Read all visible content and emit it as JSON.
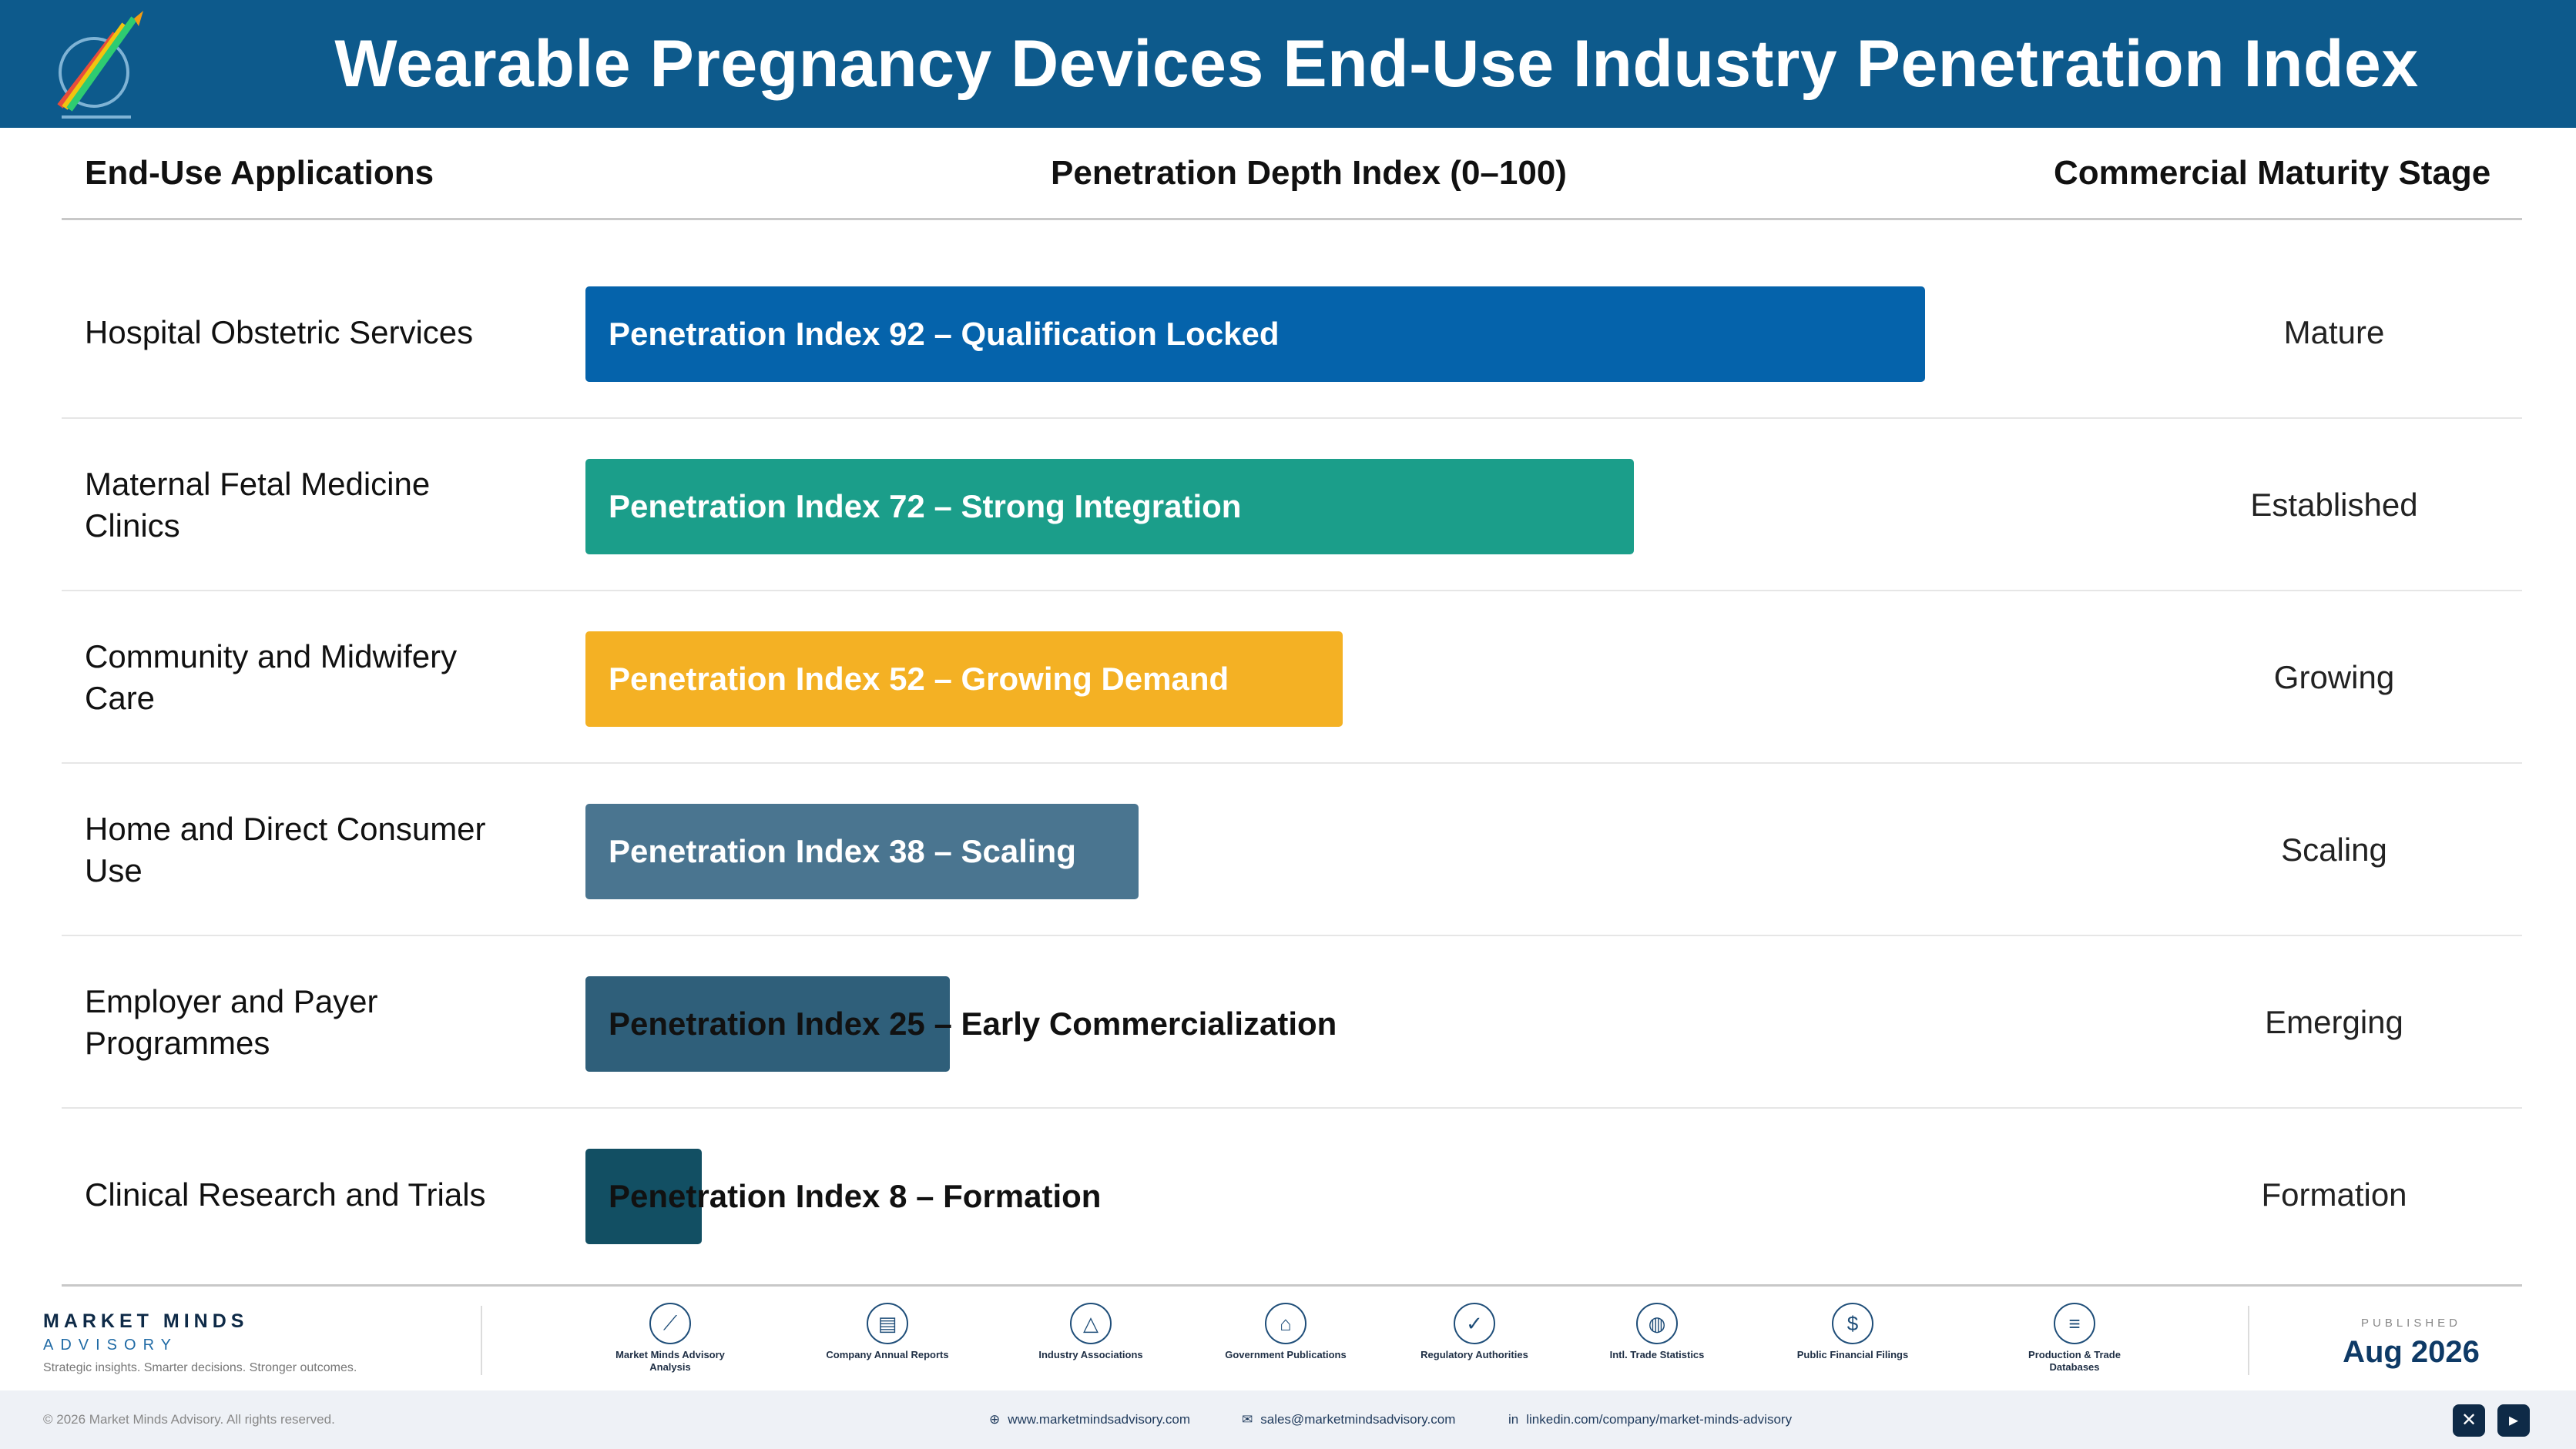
{
  "header": {
    "title": "Wearable Pregnancy Devices End-Use Industry Penetration Index",
    "logo_icon": "pencil-chart-logo-icon"
  },
  "columns": {
    "applications": "End-Use Applications",
    "index": "Penetration Depth Index (0–100)",
    "stage": "Commercial Maturity Stage"
  },
  "chart_data": {
    "type": "bar",
    "orientation": "horizontal",
    "title": "Wearable Pregnancy Devices End-Use Industry Penetration Index",
    "xlabel": "Penetration Depth Index (0–100)",
    "xlim": [
      0,
      100
    ],
    "categories": [
      "Hospital Obstetric Services",
      "Maternal Fetal Medicine Clinics",
      "Community and Midwifery Care",
      "Home and Direct Consumer Use",
      "Employer and Payer Programmes",
      "Clinical Research and Trials"
    ],
    "values": [
      92,
      72,
      52,
      38,
      25,
      8
    ],
    "bar_labels": [
      "Penetration Index 92 – Qualification Locked",
      "Penetration Index 72 – Strong Integration",
      "Penetration Index 52 – Growing Demand",
      "Penetration Index 38 – Scaling",
      "Penetration Index 25 – Early Commercialization",
      "Penetration Index 8 – Formation"
    ],
    "stages": [
      "Mature",
      "Established",
      "Growing",
      "Scaling",
      "Emerging",
      "Formation"
    ],
    "colors": [
      "#0563ab",
      "#1b9e8a",
      "#f4b124",
      "#4a7590",
      "#2f5f7a",
      "#124f63"
    ]
  },
  "footer": {
    "brand_name": "MARKET MINDS",
    "brand_sub": "ADVISORY",
    "tagline": "Strategic insights. Smarter decisions. Stronger outcomes.",
    "sources": [
      {
        "label": "Market Minds Advisory Analysis",
        "icon": "trend-chart-icon"
      },
      {
        "label": "Company Annual Reports",
        "icon": "document-icon"
      },
      {
        "label": "Industry Associations",
        "icon": "network-icon"
      },
      {
        "label": "Government Publications",
        "icon": "government-building-icon"
      },
      {
        "label": "Regulatory Authorities",
        "icon": "shield-check-icon"
      },
      {
        "label": "Intl. Trade Statistics",
        "icon": "globe-icon"
      },
      {
        "label": "Public Financial Filings",
        "icon": "dollar-coin-icon"
      },
      {
        "label": "Production & Trade Databases",
        "icon": "database-icon"
      }
    ],
    "published_label": "PUBLISHED",
    "published_date": "Aug 2026",
    "copyright": "© 2026 Market Minds Advisory. All rights reserved.",
    "website": "www.marketmindsadvisory.com",
    "email": "sales@marketmindsadvisory.com",
    "linkedin": "linkedin.com/company/market-minds-advisory"
  }
}
